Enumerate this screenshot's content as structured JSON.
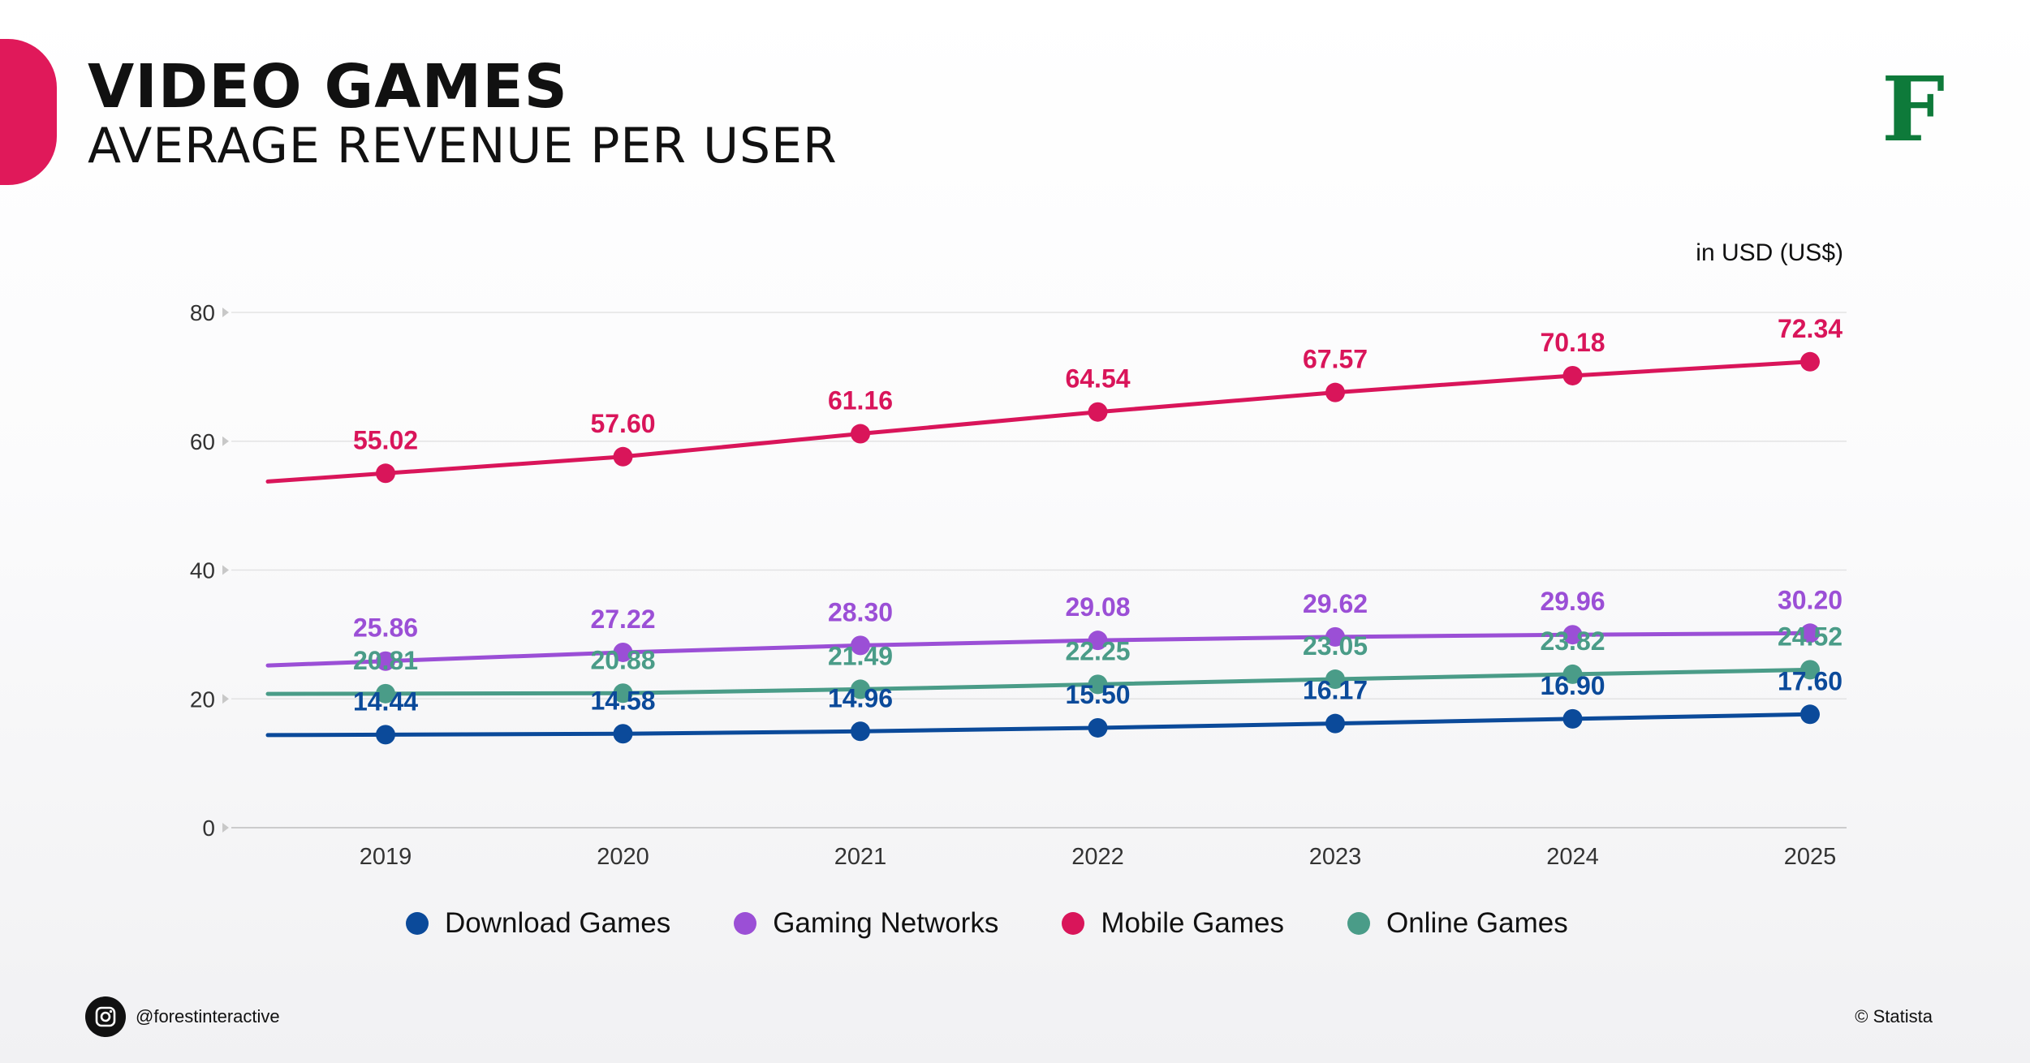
{
  "header": {
    "title": "VIDEO GAMES",
    "subtitle": "AVERAGE REVENUE PER USER",
    "logo_letter": "F",
    "units": "in USD (US$)"
  },
  "footer": {
    "handle": "@forestinteractive",
    "source": "© Statista"
  },
  "colors": {
    "download": "#0b4a9a",
    "gaming": "#9b4fd6",
    "mobile": "#d9155a",
    "online": "#4a9c88",
    "accent": "#e0195a",
    "logo": "#0e7a3a"
  },
  "legend": [
    {
      "label": "Download Games",
      "color": "#0b4a9a"
    },
    {
      "label": "Gaming Networks",
      "color": "#9b4fd6"
    },
    {
      "label": "Mobile Games",
      "color": "#d9155a"
    },
    {
      "label": "Online Games",
      "color": "#4a9c88"
    }
  ],
  "chart_data": {
    "type": "line",
    "title": "VIDEO GAMES — AVERAGE REVENUE PER USER",
    "ylabel": "in USD (US$)",
    "xlabel": "",
    "ylim": [
      0,
      80
    ],
    "yticks": [
      "0",
      "20",
      "40",
      "60",
      "80"
    ],
    "categories": [
      "2019",
      "2020",
      "2021",
      "2022",
      "2023",
      "2024",
      "2025"
    ],
    "grid": true,
    "legend_position": "bottom",
    "series": [
      {
        "name": "Mobile Games",
        "key": "mobile",
        "color": "#d9155a",
        "values": [
          55.02,
          57.6,
          61.16,
          64.54,
          67.57,
          70.18,
          72.34
        ],
        "labels": [
          "55.02",
          "57.60",
          "61.16",
          "64.54",
          "67.57",
          "70.18",
          "72.34"
        ]
      },
      {
        "name": "Gaming Networks",
        "key": "gaming",
        "color": "#9b4fd6",
        "values": [
          25.86,
          27.22,
          28.3,
          29.08,
          29.62,
          29.96,
          30.2
        ],
        "labels": [
          "25.86",
          "27.22",
          "28.30",
          "29.08",
          "29.62",
          "29.96",
          "30.20"
        ]
      },
      {
        "name": "Online Games",
        "key": "online",
        "color": "#4a9c88",
        "values": [
          20.81,
          20.88,
          21.49,
          22.25,
          23.05,
          23.82,
          24.52
        ],
        "labels": [
          "20.81",
          "20.88",
          "21.49",
          "22.25",
          "23.05",
          "23.82",
          "24.52"
        ]
      },
      {
        "name": "Download Games",
        "key": "download",
        "color": "#0b4a9a",
        "values": [
          14.44,
          14.58,
          14.96,
          15.5,
          16.17,
          16.9,
          17.6
        ],
        "labels": [
          "14.44",
          "14.58",
          "14.96",
          "15.50",
          "16.17",
          "16.90",
          "17.60"
        ]
      }
    ]
  }
}
